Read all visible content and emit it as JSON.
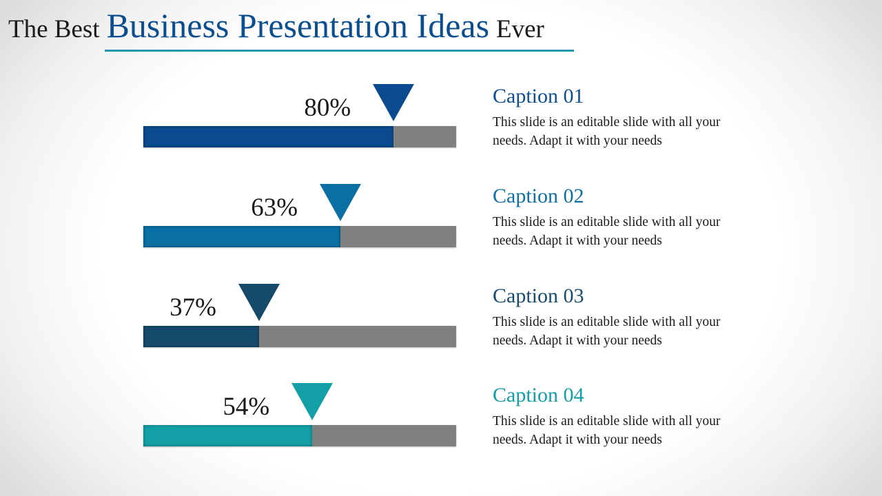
{
  "title": {
    "prefix": "The Best",
    "main": "Business Presentation Ideas",
    "suffix": "Ever"
  },
  "colors": {
    "title_main": "#0a4e8f",
    "underline": "#1f95b1",
    "track": "#808080"
  },
  "items": [
    {
      "percent_label": "80%",
      "value": 80,
      "caption": "Caption 01",
      "text": "This slide is an editable slide with all your needs. Adapt it with your needs",
      "color": "#0a4a8e",
      "caption_color": "#0d4f91"
    },
    {
      "percent_label": "63%",
      "value": 63,
      "caption": "Caption 02",
      "text": "This slide is an editable slide with all your needs. Adapt it with your needs",
      "color": "#0a6fa3",
      "caption_color": "#0d6fa5"
    },
    {
      "percent_label": "37%",
      "value": 37,
      "caption": "Caption 03",
      "text": "This slide is an editable slide with all your needs. Adapt it with your needs",
      "color": "#154a6b",
      "caption_color": "#164c6d"
    },
    {
      "percent_label": "54%",
      "value": 54,
      "caption": "Caption 04",
      "text": "This slide is an editable slide with all your needs. Adapt it with your needs",
      "color": "#12a0a6",
      "caption_color": "#129ea5"
    }
  ]
}
